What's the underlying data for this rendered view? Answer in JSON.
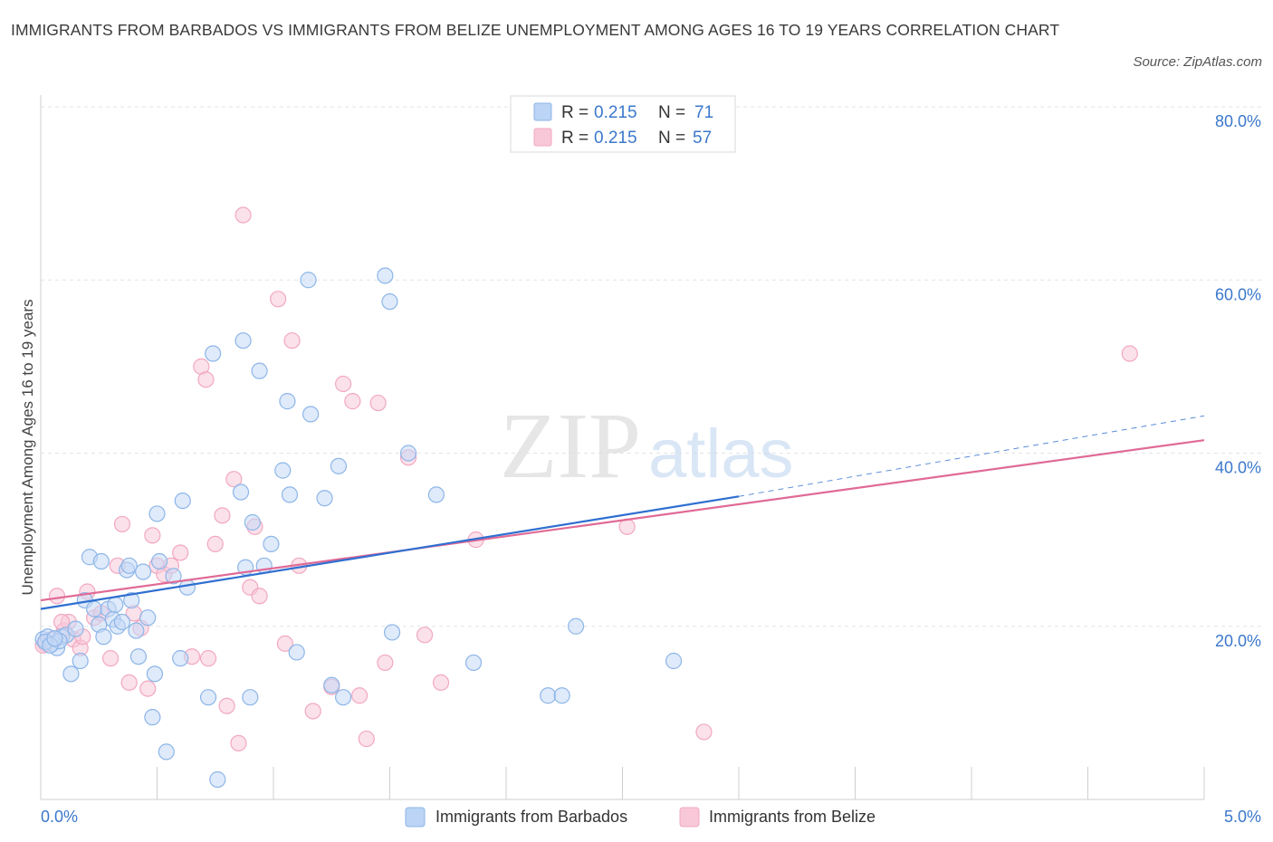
{
  "chart_data": {
    "type": "scatter",
    "title": "IMMIGRANTS FROM BARBADOS VS IMMIGRANTS FROM BELIZE UNEMPLOYMENT AMONG AGES 16 TO 19 YEARS CORRELATION CHART",
    "source": "Source: ZipAtlas.com",
    "xlabel": "",
    "ylabel": "Unemployment Among Ages 16 to 19 years",
    "xlim": [
      0,
      5
    ],
    "ylim": [
      0,
      80
    ],
    "x_tick_labels": [
      "0.0%",
      "5.0%"
    ],
    "y_ticks": [
      20,
      40,
      60,
      80
    ],
    "y_tick_labels": [
      "20.0%",
      "40.0%",
      "60.0%",
      "80.0%"
    ],
    "grid": true,
    "watermark": {
      "zip": "ZIP",
      "atlas": "atlas"
    },
    "legend_box": [
      {
        "r_label": "R = ",
        "r_value": "0.215",
        "n_label": "N = ",
        "n_value": "71"
      },
      {
        "r_label": "R = ",
        "r_value": "0.215",
        "n_label": "N = ",
        "n_value": "57"
      }
    ],
    "series": [
      {
        "name": "Immigrants from Barbados",
        "color": "#8db6e8",
        "line_color": "#2f6fd0",
        "trend": {
          "x0": 0.0,
          "y0": 22.0,
          "x1": 3.0,
          "y1": 35.0,
          "x_dash_end": 5.0,
          "y_dash_end": 44.3
        },
        "points": [
          [
            0.01,
            18.5
          ],
          [
            0.03,
            18.8
          ],
          [
            0.05,
            18.0
          ],
          [
            0.07,
            17.5
          ],
          [
            0.09,
            18.8
          ],
          [
            0.11,
            19.0
          ],
          [
            0.13,
            14.5
          ],
          [
            0.15,
            19.7
          ],
          [
            0.17,
            16.0
          ],
          [
            0.19,
            23.0
          ],
          [
            0.21,
            28.0
          ],
          [
            0.23,
            22.0
          ],
          [
            0.25,
            20.2
          ],
          [
            0.26,
            27.5
          ],
          [
            0.27,
            18.8
          ],
          [
            0.29,
            22.0
          ],
          [
            0.31,
            20.8
          ],
          [
            0.32,
            22.5
          ],
          [
            0.33,
            20.0
          ],
          [
            0.35,
            20.5
          ],
          [
            0.37,
            26.5
          ],
          [
            0.38,
            27.0
          ],
          [
            0.39,
            23.0
          ],
          [
            0.41,
            19.5
          ],
          [
            0.42,
            16.5
          ],
          [
            0.44,
            26.3
          ],
          [
            0.46,
            21.0
          ],
          [
            0.48,
            9.5
          ],
          [
            0.49,
            14.5
          ],
          [
            0.5,
            33.0
          ],
          [
            0.51,
            27.5
          ],
          [
            0.54,
            5.5
          ],
          [
            0.57,
            25.8
          ],
          [
            0.6,
            16.3
          ],
          [
            0.61,
            34.5
          ],
          [
            0.63,
            24.5
          ],
          [
            0.72,
            11.8
          ],
          [
            0.74,
            51.5
          ],
          [
            0.86,
            35.5
          ],
          [
            0.87,
            53.0
          ],
          [
            0.88,
            26.8
          ],
          [
            0.9,
            11.8
          ],
          [
            0.91,
            32.0
          ],
          [
            0.94,
            49.5
          ],
          [
            0.96,
            27.0
          ],
          [
            0.99,
            29.5
          ],
          [
            1.04,
            38.0
          ],
          [
            1.06,
            46.0
          ],
          [
            1.07,
            35.2
          ],
          [
            1.1,
            17.0
          ],
          [
            1.15,
            60.0
          ],
          [
            1.16,
            44.5
          ],
          [
            1.22,
            34.8
          ],
          [
            1.25,
            13.2
          ],
          [
            1.28,
            38.5
          ],
          [
            1.3,
            11.8
          ],
          [
            1.48,
            60.5
          ],
          [
            1.5,
            57.5
          ],
          [
            1.51,
            19.3
          ],
          [
            1.58,
            40.0
          ],
          [
            1.7,
            35.2
          ],
          [
            1.86,
            15.8
          ],
          [
            2.18,
            12.0
          ],
          [
            2.24,
            12.0
          ],
          [
            2.3,
            20.0
          ],
          [
            2.72,
            16.0
          ],
          [
            0.76,
            2.3
          ],
          [
            0.02,
            18.2
          ],
          [
            0.08,
            18.3
          ],
          [
            0.04,
            17.8
          ],
          [
            0.06,
            18.6
          ]
        ]
      },
      {
        "name": "Immigrants from Belize",
        "color": "#f2a8c0",
        "line_color": "#e06a96",
        "trend": {
          "x0": 0.0,
          "y0": 23.0,
          "x1": 5.0,
          "y1": 41.5
        },
        "points": [
          [
            0.02,
            18.0
          ],
          [
            0.05,
            18.5
          ],
          [
            0.07,
            23.5
          ],
          [
            0.1,
            19.5
          ],
          [
            0.12,
            20.5
          ],
          [
            0.14,
            18.5
          ],
          [
            0.17,
            17.5
          ],
          [
            0.2,
            24.0
          ],
          [
            0.23,
            21.0
          ],
          [
            0.26,
            21.5
          ],
          [
            0.3,
            16.3
          ],
          [
            0.33,
            27.0
          ],
          [
            0.35,
            31.8
          ],
          [
            0.38,
            13.5
          ],
          [
            0.4,
            21.5
          ],
          [
            0.43,
            19.8
          ],
          [
            0.46,
            12.8
          ],
          [
            0.48,
            30.5
          ],
          [
            0.5,
            27.0
          ],
          [
            0.53,
            26.0
          ],
          [
            0.56,
            27.0
          ],
          [
            0.6,
            28.5
          ],
          [
            0.65,
            16.5
          ],
          [
            0.69,
            50.0
          ],
          [
            0.71,
            48.5
          ],
          [
            0.72,
            16.3
          ],
          [
            0.75,
            29.5
          ],
          [
            0.78,
            32.8
          ],
          [
            0.8,
            10.8
          ],
          [
            0.83,
            37.0
          ],
          [
            0.85,
            6.5
          ],
          [
            0.87,
            67.5
          ],
          [
            0.9,
            24.5
          ],
          [
            0.92,
            31.5
          ],
          [
            0.94,
            23.5
          ],
          [
            1.02,
            57.8
          ],
          [
            1.05,
            18.0
          ],
          [
            1.08,
            53.0
          ],
          [
            1.11,
            27.0
          ],
          [
            1.17,
            10.2
          ],
          [
            1.25,
            13.0
          ],
          [
            1.3,
            48.0
          ],
          [
            1.34,
            46.0
          ],
          [
            1.37,
            12.0
          ],
          [
            1.4,
            7.0
          ],
          [
            1.45,
            45.8
          ],
          [
            1.48,
            15.8
          ],
          [
            1.58,
            39.5
          ],
          [
            1.65,
            19.0
          ],
          [
            1.72,
            13.5
          ],
          [
            1.87,
            30.0
          ],
          [
            2.52,
            31.5
          ],
          [
            2.85,
            7.8
          ],
          [
            4.68,
            51.5
          ],
          [
            0.09,
            20.5
          ],
          [
            0.01,
            17.8
          ],
          [
            0.18,
            18.8
          ]
        ]
      }
    ]
  }
}
